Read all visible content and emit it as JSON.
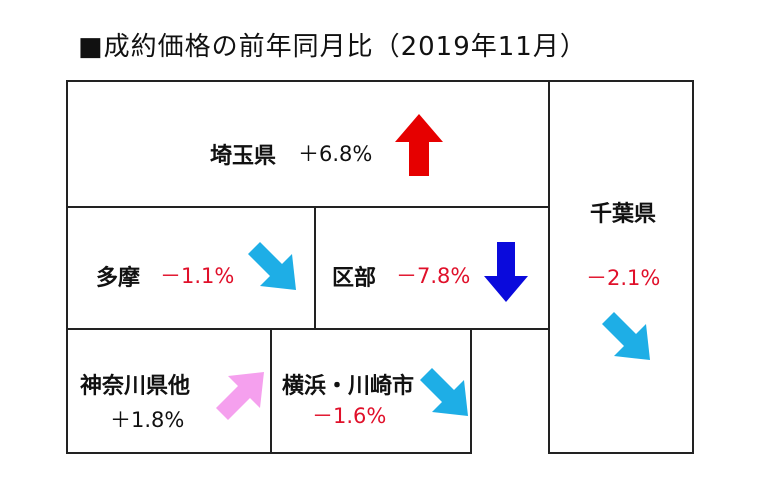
{
  "title": "■成約価格の前年同月比（2019年11月）",
  "regions": {
    "saitama": {
      "name": "埼玉県",
      "value": "＋6.8%",
      "value_color": "#111111",
      "arrow": "arrow-up-icon",
      "arrow_color": "#e60000"
    },
    "chiba": {
      "name": "千葉県",
      "value": "－2.1%",
      "value_color": "#e0102a",
      "arrow": "arrow-down-right-icon",
      "arrow_color": "#1eaee6"
    },
    "tama": {
      "name": "多摩",
      "value": "－1.1%",
      "value_color": "#e0102a",
      "arrow": "arrow-down-right-icon",
      "arrow_color": "#1eaee6"
    },
    "kubu": {
      "name": "区部",
      "value": "－7.8%",
      "value_color": "#e0102a",
      "arrow": "arrow-down-icon",
      "arrow_color": "#0a0adc"
    },
    "kanagawa": {
      "name": "神奈川県他",
      "value": "＋1.8%",
      "value_color": "#111111",
      "arrow": "arrow-up-right-icon",
      "arrow_color": "#f5a0ee"
    },
    "yokohama": {
      "name": "横浜・川崎市",
      "value": "－1.6%",
      "value_color": "#e0102a",
      "arrow": "arrow-down-right-icon",
      "arrow_color": "#1eaee6"
    }
  }
}
